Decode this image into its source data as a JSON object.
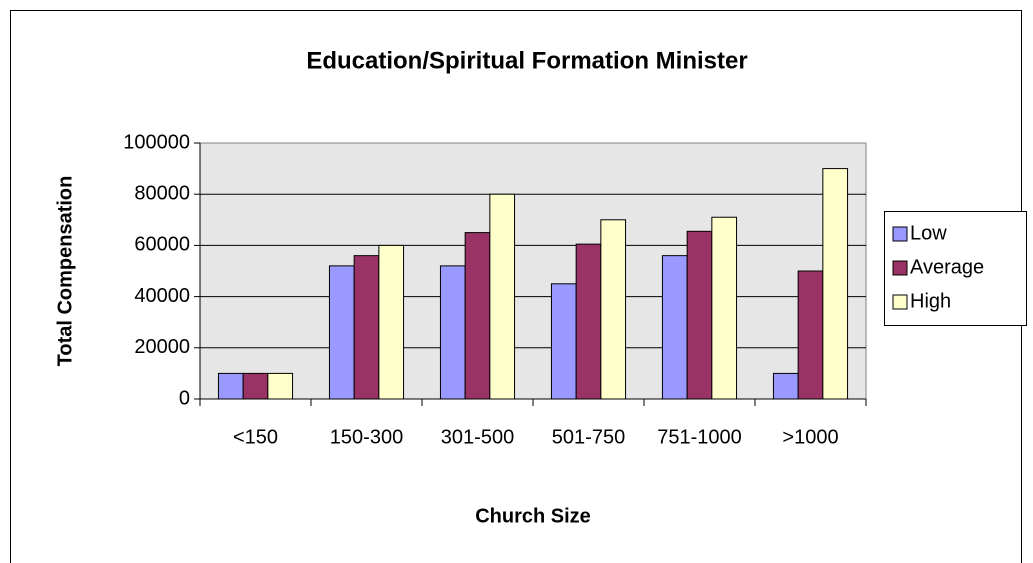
{
  "chart_data": {
    "type": "bar",
    "title": "Education/Spiritual Formation Minister",
    "x_label": "Church Size",
    "y_label": "Total Compensation",
    "categories": [
      "<150",
      "150-300",
      "301-500",
      "501-750",
      "751-1000",
      ">1000"
    ],
    "series": [
      {
        "name": "Low",
        "color": "#9999ff",
        "values": [
          10000,
          52000,
          52000,
          45000,
          56000,
          10000
        ]
      },
      {
        "name": "Average",
        "color": "#993366",
        "values": [
          10000,
          56000,
          65000,
          60500,
          65500,
          50000
        ]
      },
      {
        "name": "High",
        "color": "#ffffcc",
        "values": [
          10000,
          60000,
          80000,
          70000,
          71000,
          90000
        ]
      }
    ],
    "ylim": [
      0,
      100000
    ],
    "yticks": [
      0,
      20000,
      40000,
      60000,
      80000,
      100000
    ],
    "grid": true,
    "legend": "right"
  }
}
